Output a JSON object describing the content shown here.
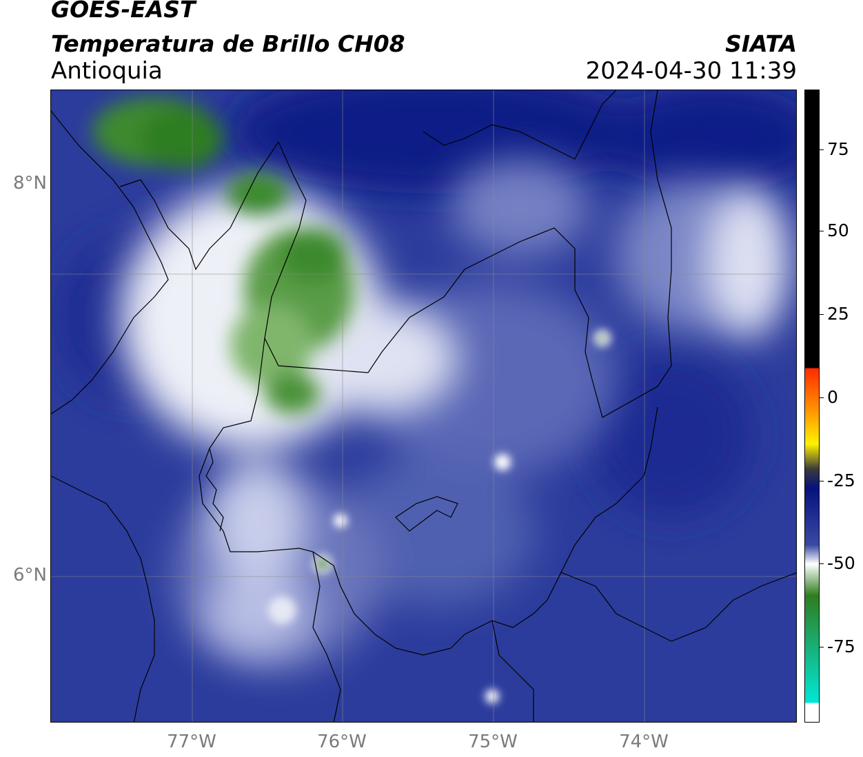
{
  "header": {
    "satellite": "GOES-EAST",
    "product": "Temperatura de Brillo CH08",
    "region": "Antioquia",
    "brand": "SIATA",
    "timestamp": "2024-04-30 11:39"
  },
  "axes": {
    "lat_ticks": [
      "8°N",
      "6°N"
    ],
    "lon_ticks": [
      "77°W",
      "76°W",
      "75°W",
      "74°W"
    ]
  },
  "colorbar": {
    "ticks": [
      "75",
      "50",
      "25",
      "0",
      "-25",
      "-50",
      "-75"
    ],
    "colors": {
      "top": "#000000",
      "red": "#ff2a00",
      "orange": "#ff9a00",
      "yellow": "#fff200",
      "dark": "#3a3a3a",
      "navy": "#06127e",
      "blue": "#3a4aa4",
      "white": "#ffffff",
      "green": "#2e7d1e",
      "cyan": "#00e8d8"
    }
  }
}
